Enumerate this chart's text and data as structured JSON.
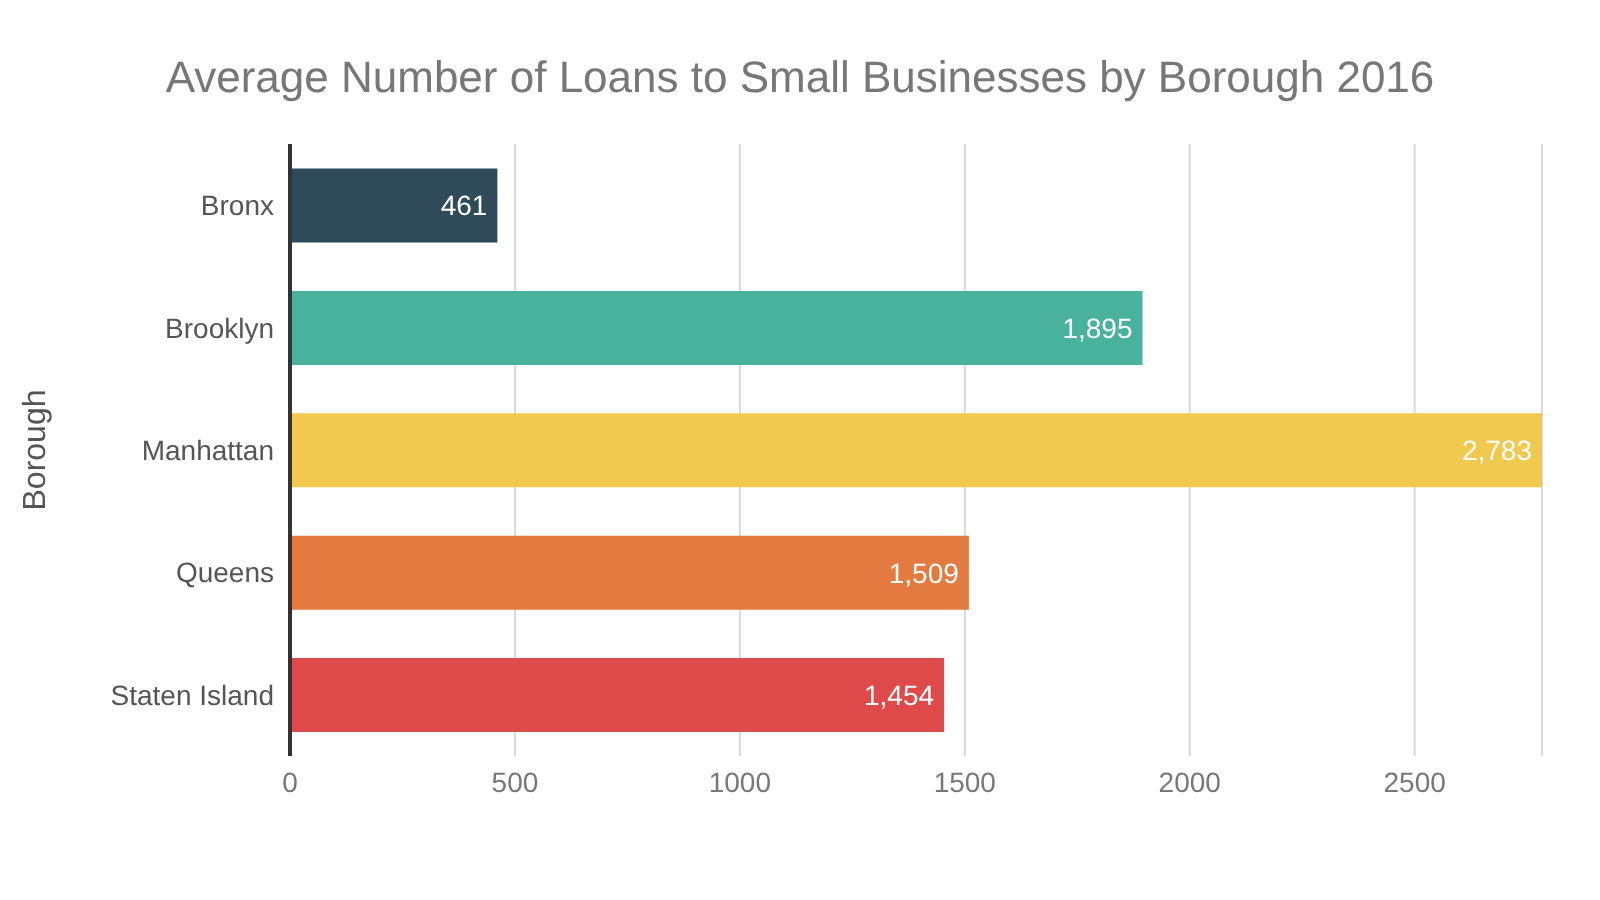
{
  "chart_data": {
    "type": "bar",
    "orientation": "horizontal",
    "title": "Average Number of Loans to Small Businesses by Borough 2016",
    "ylabel": "Borough",
    "categories": [
      "Bronx",
      "Brooklyn",
      "Manhattan",
      "Queens",
      "Staten Island"
    ],
    "values": [
      461,
      1895,
      2783,
      1509,
      1454
    ],
    "value_labels": [
      "461",
      "1,895",
      "2,783",
      "1,509",
      "1,454"
    ],
    "colors": [
      "#2f4b5a",
      "#48b29c",
      "#f0c94e",
      "#e37b40",
      "#de4a4a"
    ],
    "xlim": [
      0,
      2783
    ],
    "xticks": [
      0,
      500,
      1000,
      1500,
      2000,
      2500
    ],
    "grid": "x",
    "legend": false
  }
}
